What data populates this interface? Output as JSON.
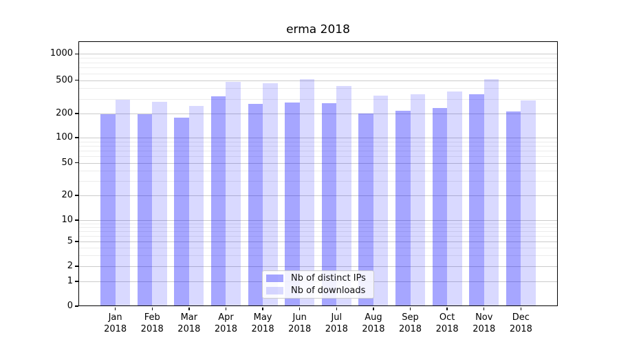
{
  "chart_data": {
    "type": "bar",
    "title": "erma 2018",
    "categories": [
      "Jan",
      "Feb",
      "Mar",
      "Apr",
      "May",
      "Jun",
      "Jul",
      "Aug",
      "Sep",
      "Oct",
      "Nov",
      "Dec"
    ],
    "x_tick_year_line": "2018",
    "series": [
      {
        "name": "Nb of distinct IPs",
        "color": "rgba(0,0,255,0.35)",
        "values": [
          197,
          197,
          177,
          322,
          260,
          270,
          265,
          201,
          214,
          234,
          343,
          212
        ]
      },
      {
        "name": "Nb of downloads",
        "color": "rgba(0,0,255,0.15)",
        "values": [
          291,
          274,
          245,
          480,
          460,
          511,
          430,
          329,
          340,
          365,
          516,
          287
        ]
      }
    ],
    "y_axis": {
      "scale": "symlog",
      "ticks": [
        0,
        1,
        2,
        5,
        10,
        20,
        50,
        100,
        200,
        500,
        1000
      ],
      "range_top": 1400
    },
    "grid": true,
    "legend_position": "lower center inside plot"
  }
}
